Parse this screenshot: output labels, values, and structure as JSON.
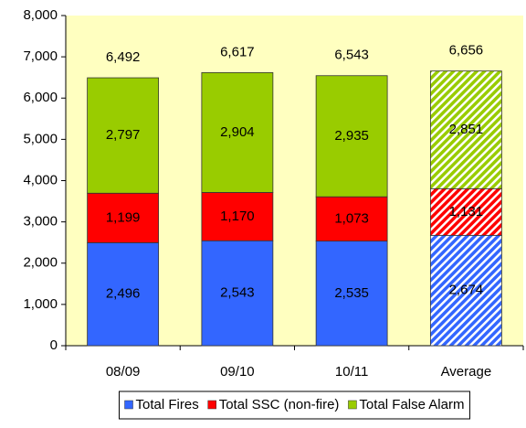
{
  "chart_data": {
    "type": "stacked-bar",
    "categories": [
      "08/09",
      "09/10",
      "10/11",
      "Average"
    ],
    "series": [
      {
        "name": "Total Fires",
        "color": "#3366ff",
        "values": [
          2496,
          2543,
          2535,
          2674
        ],
        "value_labels": [
          "2,496",
          "2,543",
          "2,535",
          "2,674"
        ]
      },
      {
        "name": "Total SSC (non-fire)",
        "color": "#ff0000",
        "values": [
          1199,
          1170,
          1073,
          1131
        ],
        "value_labels": [
          "1,199",
          "1,170",
          "1,073",
          "1,131"
        ]
      },
      {
        "name": "Total False Alarm",
        "color": "#99cc00",
        "values": [
          2797,
          2904,
          2935,
          2851
        ],
        "value_labels": [
          "2,797",
          "2,904",
          "2,935",
          "2,851"
        ]
      }
    ],
    "totals": [
      6492,
      6617,
      6543,
      6656
    ],
    "total_labels": [
      "6,492",
      "6,617",
      "6,543",
      "6,656"
    ],
    "hatched": [
      false,
      false,
      false,
      true
    ],
    "ylim": [
      0,
      8000
    ],
    "yticks": [
      0,
      {
        "value": 1000,
        "label": "1,000"
      },
      {
        "value": 2000,
        "label": "2,000"
      },
      {
        "value": 3000,
        "label": "3,000"
      },
      {
        "value": 4000,
        "label": "4,000"
      },
      {
        "value": 5000,
        "label": "5,000"
      },
      {
        "value": 6000,
        "label": "6,000"
      },
      {
        "value": 7000,
        "label": "7,000"
      },
      {
        "value": 8000,
        "label": "8,000"
      }
    ],
    "legend": "bottom",
    "plot_background": "#ffffc0"
  }
}
